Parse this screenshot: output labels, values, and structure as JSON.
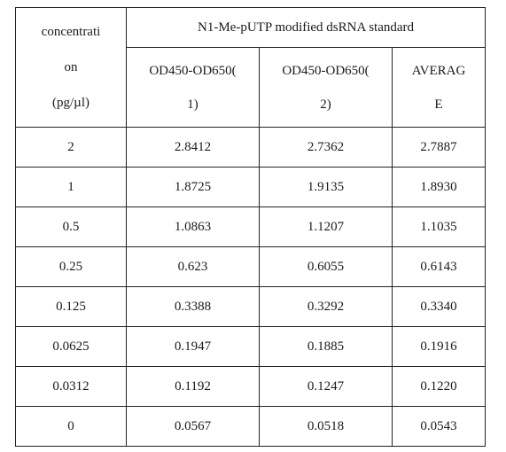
{
  "table": {
    "conc_header_lines": [
      "concentrati",
      "on",
      "(pg/µl)"
    ],
    "group_title": "N1-Me-pUTP modified dsRNA standard",
    "columns": [
      {
        "lines": [
          "OD450-OD650(",
          "1)"
        ]
      },
      {
        "lines": [
          "OD450-OD650(",
          "2)"
        ]
      },
      {
        "lines": [
          "AVERAG",
          "E"
        ]
      }
    ],
    "rows": [
      {
        "conc": "2",
        "od1": "2.8412",
        "od2": "2.7362",
        "avg": "2.7887"
      },
      {
        "conc": "1",
        "od1": "1.8725",
        "od2": "1.9135",
        "avg": "1.8930"
      },
      {
        "conc": "0.5",
        "od1": "1.0863",
        "od2": "1.1207",
        "avg": "1.1035"
      },
      {
        "conc": "0.25",
        "od1": "0.623",
        "od2": "0.6055",
        "avg": "0.6143"
      },
      {
        "conc": "0.125",
        "od1": "0.3388",
        "od2": "0.3292",
        "avg": "0.3340"
      },
      {
        "conc": "0.0625",
        "od1": "0.1947",
        "od2": "0.1885",
        "avg": "0.1916"
      },
      {
        "conc": "0.0312",
        "od1": "0.1192",
        "od2": "0.1247",
        "avg": "0.1220"
      },
      {
        "conc": "0",
        "od1": "0.0567",
        "od2": "0.0518",
        "avg": "0.0543"
      }
    ]
  }
}
